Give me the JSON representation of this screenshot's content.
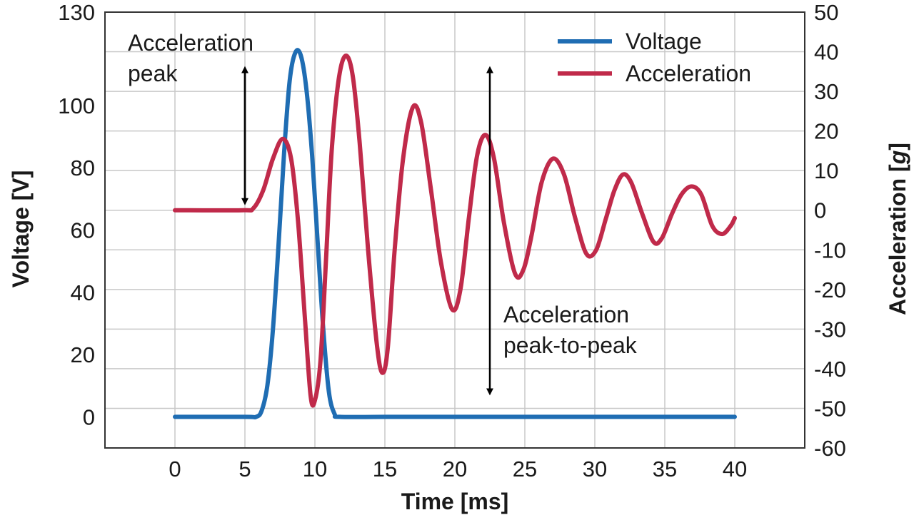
{
  "chart_data": {
    "type": "line",
    "xlabel": "Time [ms]",
    "ylabel_left": "Voltage [V]",
    "ylabel_right_prefix": "Acceleration [",
    "ylabel_right_unit": "g",
    "ylabel_right_suffix": "]",
    "xlim": [
      -5,
      45
    ],
    "ylim_left": [
      -10,
      130
    ],
    "ylim_right": [
      -60,
      50
    ],
    "x_ticks": [
      "0",
      "5",
      "10",
      "15",
      "20",
      "25",
      "30",
      "35",
      "40"
    ],
    "y_left_ticks": [
      "0",
      "20",
      "40",
      "60",
      "80",
      "100",
      "130"
    ],
    "y_right_ticks": [
      "50",
      "40",
      "30",
      "20",
      "10",
      "0",
      "-10",
      "-20",
      "-30",
      "-40",
      "-50",
      "-60"
    ],
    "grid": true,
    "legend_position": "top-right",
    "series": [
      {
        "name": "Voltage",
        "axis": "left",
        "color": "#1f6db3",
        "points": [
          [
            0,
            0
          ],
          [
            5,
            0
          ],
          [
            5.8,
            0
          ],
          [
            6.2,
            2
          ],
          [
            6.6,
            10
          ],
          [
            7,
            28
          ],
          [
            7.4,
            55
          ],
          [
            7.8,
            85
          ],
          [
            8.2,
            108
          ],
          [
            8.6,
            117
          ],
          [
            9,
            116
          ],
          [
            9.4,
            105
          ],
          [
            9.8,
            84
          ],
          [
            10.2,
            56
          ],
          [
            10.6,
            28
          ],
          [
            11,
            8
          ],
          [
            11.4,
            1
          ],
          [
            11.8,
            0
          ],
          [
            15,
            0
          ],
          [
            20,
            0
          ],
          [
            25,
            0
          ],
          [
            30,
            0
          ],
          [
            35,
            0
          ],
          [
            40,
            0
          ]
        ]
      },
      {
        "name": "Acceleration",
        "axis": "right",
        "color": "#c02a4a",
        "points": [
          [
            0,
            0
          ],
          [
            4.8,
            0
          ],
          [
            5.6,
            0.5
          ],
          [
            6.3,
            5
          ],
          [
            7,
            13
          ],
          [
            7.7,
            18
          ],
          [
            8.3,
            13
          ],
          [
            8.8,
            -3
          ],
          [
            9.3,
            -28
          ],
          [
            9.7,
            -47
          ],
          [
            10,
            -48
          ],
          [
            10.4,
            -38
          ],
          [
            10.8,
            -12
          ],
          [
            11.2,
            15
          ],
          [
            11.7,
            33
          ],
          [
            12.2,
            39
          ],
          [
            12.7,
            34
          ],
          [
            13.2,
            17
          ],
          [
            13.8,
            -10
          ],
          [
            14.4,
            -33
          ],
          [
            14.8,
            -41
          ],
          [
            15.2,
            -35
          ],
          [
            15.7,
            -10
          ],
          [
            16.3,
            13
          ],
          [
            17,
            26
          ],
          [
            17.6,
            22
          ],
          [
            18.3,
            5
          ],
          [
            19,
            -13
          ],
          [
            19.8,
            -25
          ],
          [
            20.4,
            -20
          ],
          [
            21,
            -2
          ],
          [
            21.6,
            14
          ],
          [
            22.2,
            19
          ],
          [
            22.8,
            13
          ],
          [
            23.5,
            -3
          ],
          [
            24.3,
            -16
          ],
          [
            24.9,
            -15
          ],
          [
            25.5,
            -6
          ],
          [
            26.2,
            7
          ],
          [
            27,
            13
          ],
          [
            27.8,
            9
          ],
          [
            28.6,
            -2
          ],
          [
            29.4,
            -11
          ],
          [
            30.1,
            -10
          ],
          [
            30.8,
            -2
          ],
          [
            31.4,
            5
          ],
          [
            32,
            9
          ],
          [
            32.6,
            7
          ],
          [
            33.4,
            -1
          ],
          [
            34.2,
            -8
          ],
          [
            34.8,
            -7
          ],
          [
            35.5,
            -1
          ],
          [
            36.2,
            4
          ],
          [
            36.9,
            6
          ],
          [
            37.6,
            4
          ],
          [
            38.4,
            -4
          ],
          [
            39.1,
            -6
          ],
          [
            39.7,
            -4
          ],
          [
            40,
            -2
          ]
        ]
      }
    ],
    "annotations": [
      {
        "lines": [
          "Acceleration",
          "peak"
        ],
        "arrow_x": 5,
        "arrow_from_right": 0,
        "arrow_to_right": 38
      },
      {
        "lines": [
          "Acceleration",
          "peak-to-peak"
        ],
        "arrow_x": 22.5,
        "arrow_from_right": -48,
        "arrow_to_right": 38
      }
    ]
  }
}
